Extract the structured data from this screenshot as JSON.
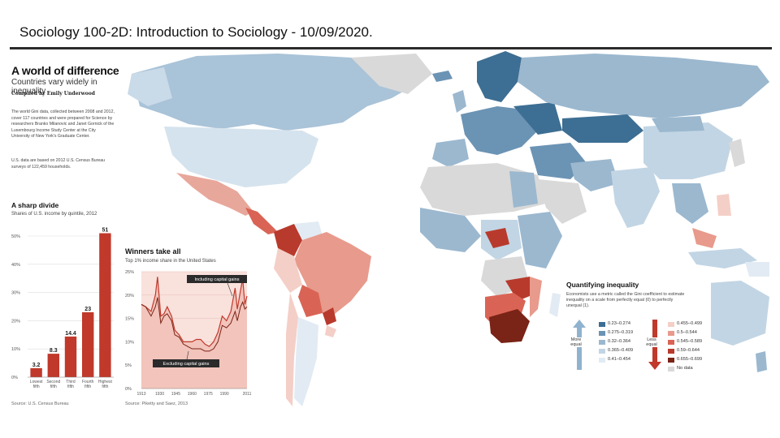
{
  "slide": {
    "title": "Sociology 100-2D: Introduction to Sociology - 10/09/2020."
  },
  "infographic": {
    "headline": "A world of difference",
    "subheadline": "Countries vary widely in inequality",
    "credit": "Compiled by Emily Underwood",
    "description": "The world Gini data, collected between 2008 and 2012, cover 117 countries and were prepared for Science by researchers Branko Milanovic and Janet Gornick of the Luxembourg Income Study Center at the City University of New York's Graduate Center.",
    "us_note": "U.S. data are based on 2012 U.S. Census Bureau surveys of 122,459 households."
  },
  "bar_panel": {
    "title": "A sharp divide",
    "subtitle": "Shares of U.S. income by quintile, 2012",
    "source": "Source: U.S. Census Bureau"
  },
  "line_panel": {
    "title": "Winners take all",
    "subtitle": "Top 1% income share in the United States",
    "annotation_top": "Including capital gains",
    "annotation_bottom": "Excluding capital gains",
    "source": "Source: Piketty and Saez, 2013"
  },
  "legend": {
    "title": "Quantifying inequality",
    "description": "Economists use a metric called the Gini coefficient to estimate inequality on a scale from perfectly equal (0) to perfectly unequal (1).",
    "more_equal": "More equal",
    "less_equal": "Less equal",
    "blue_bins": [
      {
        "label": "0.23–0.274",
        "color": "#3d6e93"
      },
      {
        "label": "0.275–0.319",
        "color": "#6b93b4"
      },
      {
        "label": "0.32–0.364",
        "color": "#9bb8cf"
      },
      {
        "label": "0.365–0.409",
        "color": "#c2d5e4"
      },
      {
        "label": "0.41–0.454",
        "color": "#e2ebf3"
      }
    ],
    "red_bins": [
      {
        "label": "0.455–0.499",
        "color": "#f4cfc7"
      },
      {
        "label": "0.5–0.544",
        "color": "#e89a8c"
      },
      {
        "label": "0.545–0.589",
        "color": "#d96455"
      },
      {
        "label": "0.59–0.644",
        "color": "#b83a2c"
      },
      {
        "label": "0.655–0.699",
        "color": "#7a2317"
      },
      {
        "label": "No data",
        "color": "#d9d9d9"
      }
    ]
  },
  "chart_data": [
    {
      "type": "bar",
      "title": "A sharp divide",
      "subtitle": "Shares of U.S. income by quintile, 2012",
      "categories": [
        "Lowest fifth",
        "Second fifth",
        "Third fifth",
        "Fourth fifth",
        "Highest fifth"
      ],
      "values": [
        3.2,
        8.3,
        14.4,
        23,
        51
      ],
      "ylim": [
        0,
        50
      ],
      "yticks": [
        "0%",
        "10%",
        "20%",
        "30%",
        "40%",
        "50%"
      ],
      "color": "#c0392b"
    },
    {
      "type": "area",
      "title": "Winners take all",
      "subtitle": "Top 1% income share in the United States",
      "x_ticks": [
        "1913",
        "1930",
        "1945",
        "1960",
        "1975",
        "1990",
        "2011"
      ],
      "yticks": [
        "0%",
        "5%",
        "10%",
        "15%",
        "20%",
        "25%"
      ],
      "ylim": [
        0,
        25
      ],
      "series": [
        {
          "name": "Including capital gains",
          "x": [
            1913,
            1917,
            1922,
            1926,
            1928,
            1931,
            1934,
            1937,
            1941,
            1944,
            1948,
            1952,
            1956,
            1960,
            1964,
            1968,
            1972,
            1976,
            1980,
            1984,
            1988,
            1992,
            1996,
            2000,
            2002,
            2005,
            2007,
            2009,
            2011
          ],
          "values": [
            18,
            17.5,
            16.5,
            20,
            23.9,
            15.5,
            16,
            17.5,
            15.5,
            12.5,
            11.5,
            10,
            10,
            10,
            10.5,
            10.5,
            9.5,
            9,
            10,
            12,
            15.5,
            14.5,
            16.5,
            21.5,
            17,
            21,
            23.5,
            18,
            19.8
          ]
        },
        {
          "name": "Excluding capital gains",
          "x": [
            1913,
            1917,
            1922,
            1926,
            1928,
            1931,
            1934,
            1937,
            1941,
            1944,
            1948,
            1952,
            1956,
            1960,
            1964,
            1968,
            1972,
            1976,
            1980,
            1984,
            1988,
            1992,
            1996,
            2000,
            2002,
            2005,
            2007,
            2009,
            2011
          ],
          "values": [
            18,
            17.5,
            15.5,
            17.5,
            19.5,
            14,
            15.5,
            16,
            14.5,
            11.5,
            11,
            9.5,
            9,
            8.5,
            8.5,
            8.5,
            8,
            8,
            8.5,
            10,
            13.5,
            13,
            14,
            16.5,
            14.5,
            17.5,
            18.5,
            17,
            17.5
          ]
        }
      ]
    }
  ]
}
